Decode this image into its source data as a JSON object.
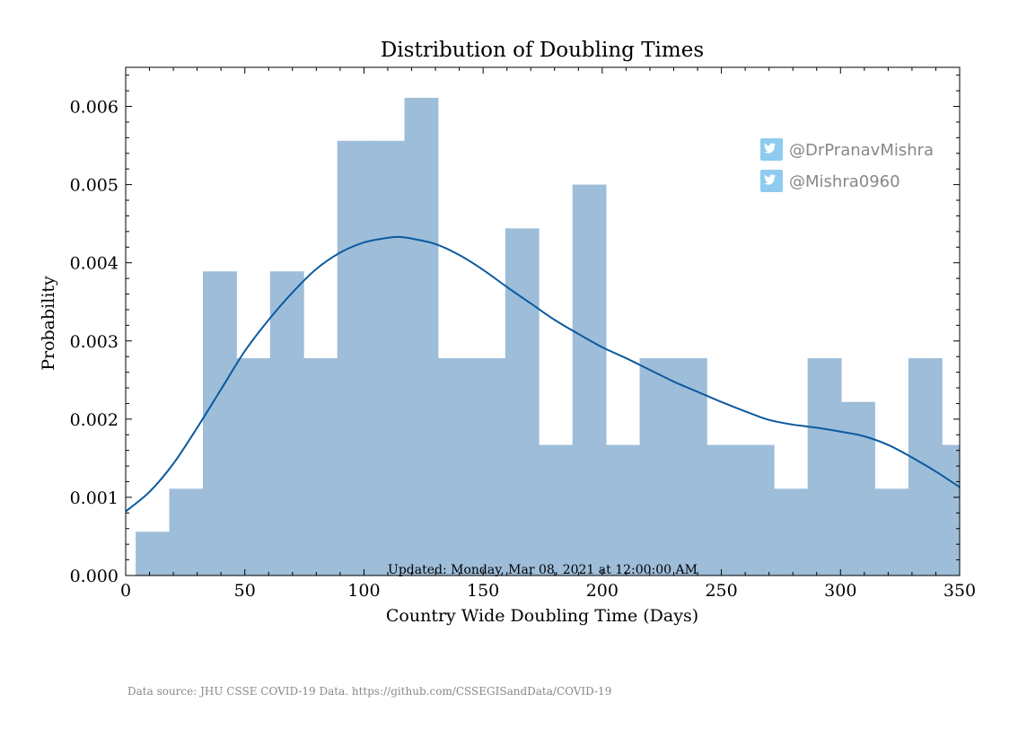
{
  "chart_data": {
    "type": "bar",
    "title": "Distribution of Doubling Times",
    "xlabel": "Country Wide Doubling Time (Days)",
    "ylabel": "Probability",
    "xlim": [
      0,
      350
    ],
    "ylim": [
      0,
      0.0065
    ],
    "xticks": [
      "0",
      "50",
      "100",
      "150",
      "200",
      "250",
      "300",
      "350"
    ],
    "yticks": [
      "0.000",
      "0.001",
      "0.002",
      "0.003",
      "0.004",
      "0.005",
      "0.006"
    ],
    "bin_width": 14.1,
    "bins": [
      {
        "x0": 4.2,
        "value": 0.00056
      },
      {
        "x0": 18.3,
        "value": 0.00111
      },
      {
        "x0": 32.4,
        "value": 0.00389
      },
      {
        "x0": 46.5,
        "value": 0.00278
      },
      {
        "x0": 60.6,
        "value": 0.00389
      },
      {
        "x0": 74.7,
        "value": 0.00278
      },
      {
        "x0": 88.8,
        "value": 0.00556
      },
      {
        "x0": 102.9,
        "value": 0.00556
      },
      {
        "x0": 117.0,
        "value": 0.00611
      },
      {
        "x0": 131.1,
        "value": 0.00278
      },
      {
        "x0": 145.2,
        "value": 0.00278
      },
      {
        "x0": 159.3,
        "value": 0.00444
      },
      {
        "x0": 173.4,
        "value": 0.00167
      },
      {
        "x0": 187.5,
        "value": 0.005
      },
      {
        "x0": 201.6,
        "value": 0.00167
      },
      {
        "x0": 215.7,
        "value": 0.00278
      },
      {
        "x0": 229.8,
        "value": 0.00278
      },
      {
        "x0": 243.9,
        "value": 0.00167
      },
      {
        "x0": 258.0,
        "value": 0.00167
      },
      {
        "x0": 272.1,
        "value": 0.00111
      },
      {
        "x0": 286.2,
        "value": 0.00278
      },
      {
        "x0": 300.3,
        "value": 0.00222
      },
      {
        "x0": 314.4,
        "value": 0.00111
      },
      {
        "x0": 328.5,
        "value": 0.00278
      },
      {
        "x0": 342.6,
        "value": 0.00167
      }
    ],
    "kde": {
      "x": [
        0,
        10,
        20,
        30,
        40,
        50,
        60,
        70,
        80,
        90,
        100,
        110,
        115,
        120,
        130,
        140,
        150,
        160,
        170,
        180,
        190,
        200,
        210,
        220,
        230,
        240,
        250,
        260,
        270,
        280,
        290,
        300,
        310,
        320,
        330,
        340,
        350
      ],
      "y": [
        0.00082,
        0.00107,
        0.00143,
        0.00189,
        0.00238,
        0.00287,
        0.00327,
        0.00362,
        0.00392,
        0.00413,
        0.00426,
        0.00432,
        0.00433,
        0.00431,
        0.00424,
        0.0041,
        0.00391,
        0.00369,
        0.00348,
        0.00327,
        0.00309,
        0.00292,
        0.00278,
        0.00263,
        0.00248,
        0.00235,
        0.00222,
        0.0021,
        0.00199,
        0.00193,
        0.00189,
        0.00184,
        0.00178,
        0.00167,
        0.00151,
        0.00133,
        0.00113
      ]
    },
    "bar_color": "#9dbdd9",
    "line_color": "#0b5aa0",
    "grid": false,
    "annotation": "Updated: Monday, Mar 08, 2021 at 12:00:00 AM",
    "legend_position": "top-right",
    "social": [
      {
        "icon": "twitter-icon",
        "handle": "@DrPranavMishra"
      },
      {
        "icon": "twitter-icon",
        "handle": "@Mishra0960"
      }
    ],
    "social_icon_color": "#8ecbef",
    "footer": "Data source: JHU CSSE COVID-19 Data. https://github.com/CSSEGISandData/COVID-19"
  }
}
